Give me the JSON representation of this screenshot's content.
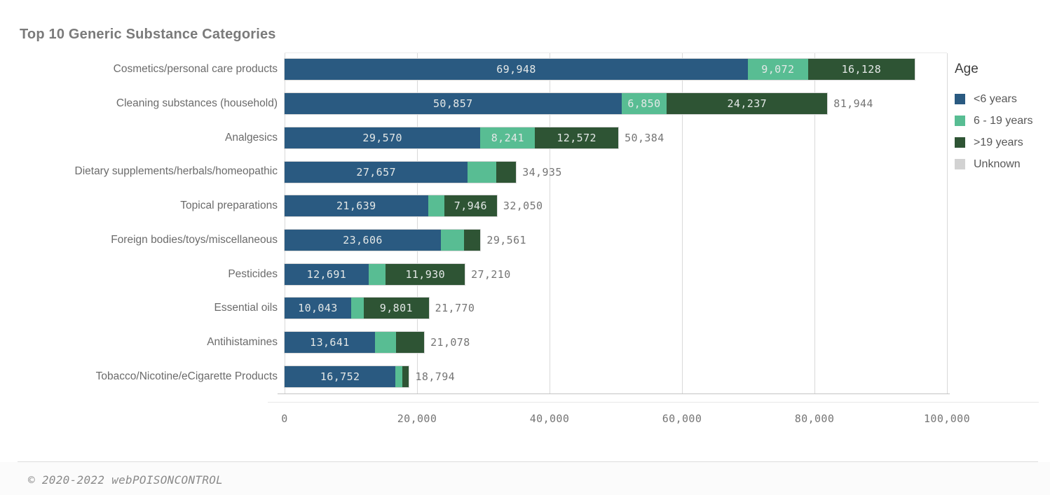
{
  "title": "Top 10 Generic Substance Categories",
  "legend": {
    "title": "Age",
    "items": [
      {
        "label": "<6 years",
        "color": "#2a5a81"
      },
      {
        "label": "6 - 19 years",
        "color": "#58bd93"
      },
      {
        "label": ">19 years",
        "color": "#2e5434"
      },
      {
        "label": "Unknown",
        "color": "#d2d2d2"
      }
    ]
  },
  "footer": {
    "copyright": "© 2020-2022 webPOISONCONTROL"
  },
  "chart_data": {
    "type": "bar",
    "orientation": "horizontal",
    "stacked": true,
    "title": "Top 10 Generic Substance Categories",
    "xlabel": "",
    "ylabel": "",
    "xlim": [
      0,
      100000
    ],
    "xticks": [
      "0",
      "20,000",
      "40,000",
      "60,000",
      "80,000",
      "100,000"
    ],
    "grid": true,
    "legend_position": "right",
    "categories": [
      "Cosmetics/personal care products",
      "Cleaning substances (household)",
      "Analgesics",
      "Dietary supplements/herbals/homeopathic",
      "Topical preparations",
      "Foreign bodies/toys/miscellaneous",
      "Pesticides",
      "Essential oils",
      "Antihistamines",
      "Tobacco/Nicotine/eCigarette Products"
    ],
    "series": [
      {
        "name": "<6 years",
        "color": "#2a5a81",
        "values": [
          69948,
          50857,
          29570,
          27657,
          21639,
          23606,
          12691,
          10043,
          13641,
          16752
        ]
      },
      {
        "name": "6 - 19 years",
        "color": "#58bd93",
        "values": [
          9072,
          6850,
          8241,
          4316,
          2465,
          3525,
          2589,
          1926,
          3168,
          1021
        ]
      },
      {
        "name": ">19 years",
        "color": "#2e5434",
        "values": [
          16128,
          24237,
          12572,
          2962,
          7946,
          2430,
          11930,
          9801,
          4269,
          1021
        ]
      },
      {
        "name": "Unknown",
        "color": "#d2d2d2",
        "values": [
          0,
          0,
          0,
          0,
          0,
          0,
          0,
          0,
          0,
          0
        ]
      }
    ],
    "segment_labels": [
      [
        "69,948",
        "9,072",
        "16,128",
        null
      ],
      [
        "50,857",
        "6,850",
        "24,237",
        null
      ],
      [
        "29,570",
        "8,241",
        "12,572",
        null
      ],
      [
        "27,657",
        null,
        null,
        null
      ],
      [
        "21,639",
        null,
        "7,946",
        null
      ],
      [
        "23,606",
        null,
        null,
        null
      ],
      [
        "12,691",
        null,
        "11,930",
        null
      ],
      [
        "10,043",
        null,
        "9,801",
        null
      ],
      [
        "13,641",
        null,
        null,
        null
      ],
      [
        "16,752",
        null,
        null,
        null
      ]
    ],
    "total_labels": [
      null,
      "81,944",
      "50,384",
      "34,935",
      "32,050",
      "29,561",
      "27,210",
      "21,770",
      "21,078",
      "18,794"
    ]
  }
}
